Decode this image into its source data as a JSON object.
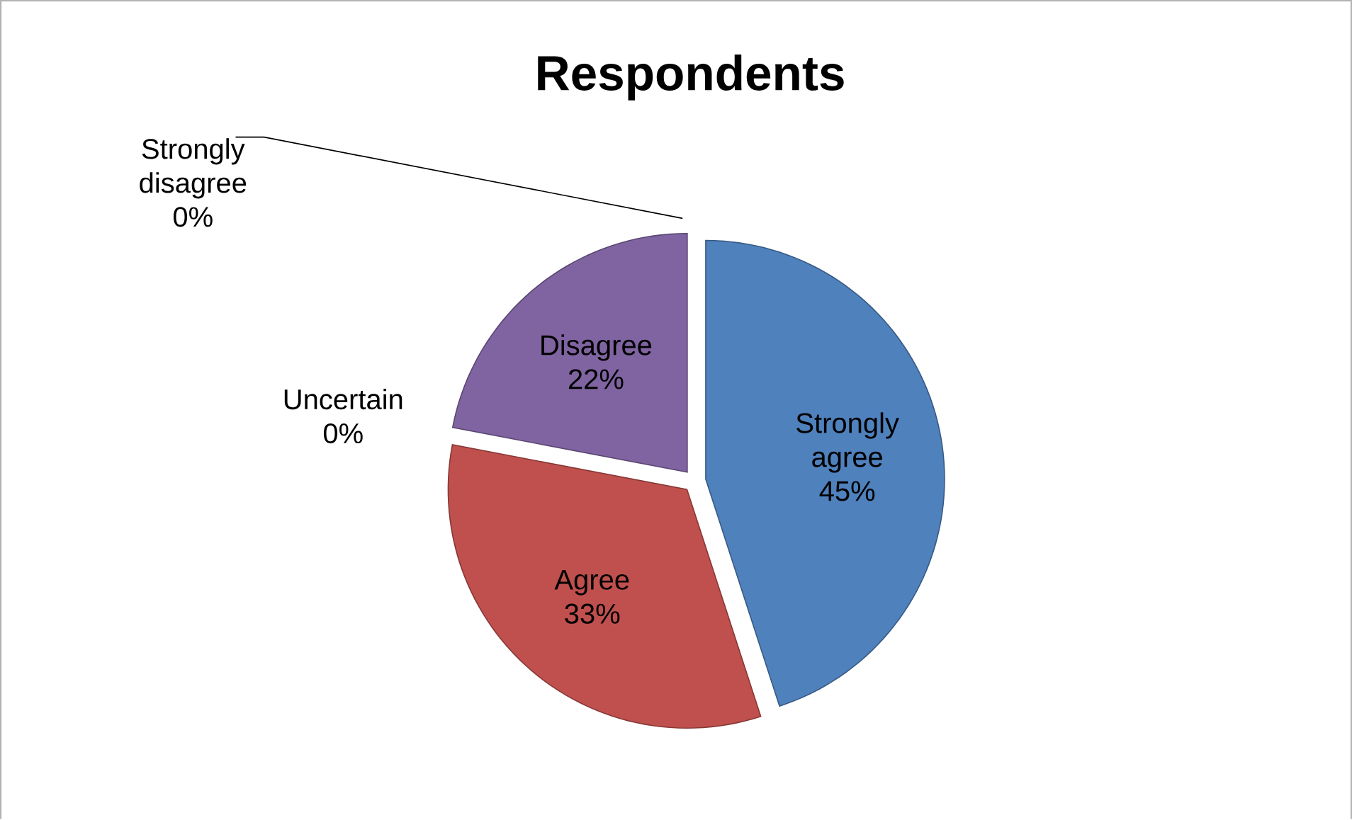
{
  "chart_data": {
    "type": "pie",
    "title": "Respondents",
    "categories": [
      "Strongly agree",
      "Agree",
      "Uncertain",
      "Disagree",
      "Strongly disagree"
    ],
    "values": [
      45,
      33,
      0,
      22,
      0
    ],
    "value_labels": [
      "45%",
      "33%",
      "0%",
      "22%",
      "0%"
    ],
    "colors": [
      "#4f81bd",
      "#c0504d",
      "#9bbb59",
      "#8064a2",
      "#4bacc6"
    ]
  }
}
